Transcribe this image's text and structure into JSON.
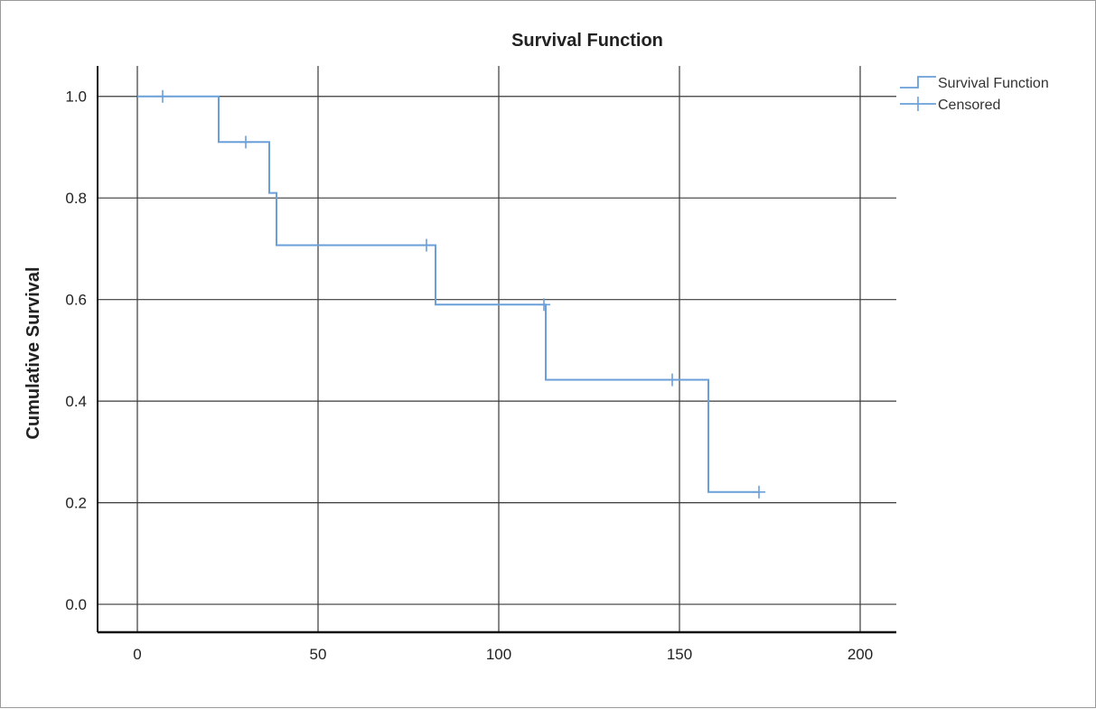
{
  "chart_data": {
    "type": "line",
    "title": "Survival Function",
    "xlabel": "",
    "ylabel": "Cumulative Survival",
    "xlim": [
      -11,
      210
    ],
    "ylim": [
      -0.055,
      1.06
    ],
    "x_ticks": [
      0,
      50,
      100,
      150,
      200
    ],
    "y_ticks": [
      "0.0",
      "0.2",
      "0.4",
      "0.6",
      "0.8",
      "1.0"
    ],
    "grid": true,
    "legend_position": "top-right",
    "series": [
      {
        "name": "Survival Function",
        "color": "#6a9fd8",
        "step_points": [
          [
            0,
            1.0
          ],
          [
            22.5,
            1.0
          ],
          [
            22.5,
            0.91
          ],
          [
            36.5,
            0.91
          ],
          [
            36.5,
            0.81
          ],
          [
            38.5,
            0.81
          ],
          [
            38.5,
            0.707
          ],
          [
            82.5,
            0.707
          ],
          [
            82.5,
            0.59
          ],
          [
            113,
            0.59
          ],
          [
            113,
            0.442
          ],
          [
            158,
            0.442
          ],
          [
            158,
            0.221
          ],
          [
            172,
            0.221
          ]
        ]
      },
      {
        "name": "Censored",
        "color": "#6a9fd8",
        "points": [
          [
            7,
            1.0
          ],
          [
            30,
            0.91
          ],
          [
            80,
            0.707
          ],
          [
            112.5,
            0.59
          ],
          [
            148,
            0.442
          ],
          [
            172,
            0.221
          ]
        ]
      }
    ]
  }
}
